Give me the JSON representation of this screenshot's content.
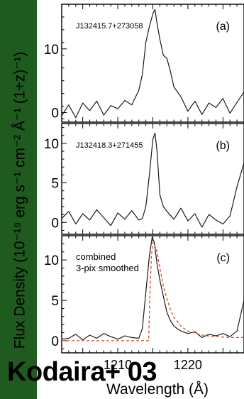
{
  "colors": {
    "background": "#1f5a1f",
    "panel": "#ffffff",
    "spectrum": "#1a1a1a",
    "model": "#d64a2a",
    "axis": "#000000"
  },
  "figure": {
    "ylabel": "Flux Density  (10⁻¹⁹ erg s⁻¹ cm⁻² Å⁻¹ (1+z)⁻¹)",
    "xlabel": "Wavelength (Å)",
    "credit": "Kodaira+ 03"
  },
  "chart_data": [
    {
      "type": "line",
      "panel_label": "(a)",
      "annotation": "J132415.7+273058",
      "xlim": [
        1202,
        1228
      ],
      "ylim": [
        -1.5,
        17
      ],
      "yticks": [
        0,
        10
      ],
      "series": [
        {
          "x": [
            1202,
            1203,
            1204,
            1205,
            1206,
            1207,
            1208,
            1209,
            1210,
            1211,
            1212,
            1213,
            1213.5,
            1214,
            1214.5,
            1215,
            1215.3,
            1215.6,
            1216,
            1216.5,
            1217,
            1217.5,
            1218,
            1219,
            1220,
            1221,
            1222,
            1223,
            1224,
            1225,
            1226,
            1227,
            1228
          ],
          "y": [
            -0.5,
            1.2,
            -0.8,
            1.5,
            0.3,
            1.8,
            -0.4,
            1.1,
            0.6,
            1.9,
            1.2,
            3.5,
            6,
            11,
            13.5,
            15.5,
            16.2,
            14,
            11.5,
            9,
            8.5,
            6.5,
            4,
            2.5,
            0.2,
            1.8,
            -0.3,
            1.5,
            0.8,
            2.2,
            -0.1,
            1.6,
            3.2
          ]
        }
      ]
    },
    {
      "type": "line",
      "panel_label": "(b)",
      "annotation": "J132418.3+271455",
      "xlim": [
        1202,
        1228
      ],
      "ylim": [
        -1.5,
        12.5
      ],
      "yticks": [
        0,
        5,
        10
      ],
      "series": [
        {
          "x": [
            1202,
            1203,
            1204,
            1205,
            1206,
            1207,
            1208,
            1209,
            1210,
            1211,
            1212,
            1213,
            1213.5,
            1214,
            1214.5,
            1215,
            1215.3,
            1215.6,
            1216,
            1216.5,
            1217,
            1218,
            1219,
            1220,
            1221,
            1222,
            1223,
            1224,
            1225,
            1226,
            1227,
            1228
          ],
          "y": [
            0.5,
            1.4,
            -0.2,
            1.1,
            0.3,
            1.6,
            0.6,
            -0.4,
            1.2,
            0.4,
            1.5,
            0.3,
            0.5,
            2,
            6,
            10.5,
            11.3,
            9,
            3.5,
            2,
            1.4,
            0.4,
            1.8,
            0.2,
            1.1,
            -0.6,
            1,
            0.3,
            -0.2,
            0.8,
            4.5,
            7.5
          ]
        }
      ]
    },
    {
      "type": "line",
      "panel_label": "(c)",
      "annotation": "combined\n3-pix smoothed",
      "xlim": [
        1202,
        1228
      ],
      "ylim": [
        -1.5,
        13
      ],
      "yticks": [
        0,
        5,
        10
      ],
      "xticks": [
        1210,
        1220
      ],
      "series": [
        {
          "name": "combined",
          "x": [
            1202,
            1203,
            1204,
            1205,
            1206,
            1207,
            1208,
            1209,
            1210,
            1211,
            1212,
            1213,
            1213.5,
            1214,
            1214.5,
            1214.9,
            1215.2,
            1215.6,
            1216,
            1216.5,
            1217,
            1217.5,
            1218,
            1219,
            1220,
            1221,
            1222,
            1223,
            1224,
            1225,
            1226,
            1227,
            1228
          ],
          "y": [
            0.2,
            0.3,
            0.8,
            0.1,
            0.7,
            0.3,
            0.9,
            0.5,
            0.2,
            0.6,
            0.4,
            0.3,
            1.5,
            6,
            10.5,
            12.8,
            12.2,
            9.5,
            7.5,
            5.5,
            3.5,
            2.5,
            1.8,
            1.2,
            0.9,
            1.1,
            0.4,
            0.8,
            0.6,
            0.9,
            0.5,
            1.2,
            5
          ]
        },
        {
          "name": "model",
          "style": "dashed",
          "x": [
            1202,
            1214.4,
            1214.6,
            1214.8,
            1215,
            1215.5,
            1216,
            1216.5,
            1217,
            1217.5,
            1218,
            1219,
            1220,
            1222,
            1224,
            1226,
            1228
          ],
          "y": [
            0,
            0,
            6,
            10.5,
            12.2,
            11.4,
            9,
            6.8,
            5.2,
            3.9,
            2.9,
            1.8,
            1.2,
            0.7,
            0.5,
            0.4,
            0.4
          ]
        }
      ]
    }
  ]
}
